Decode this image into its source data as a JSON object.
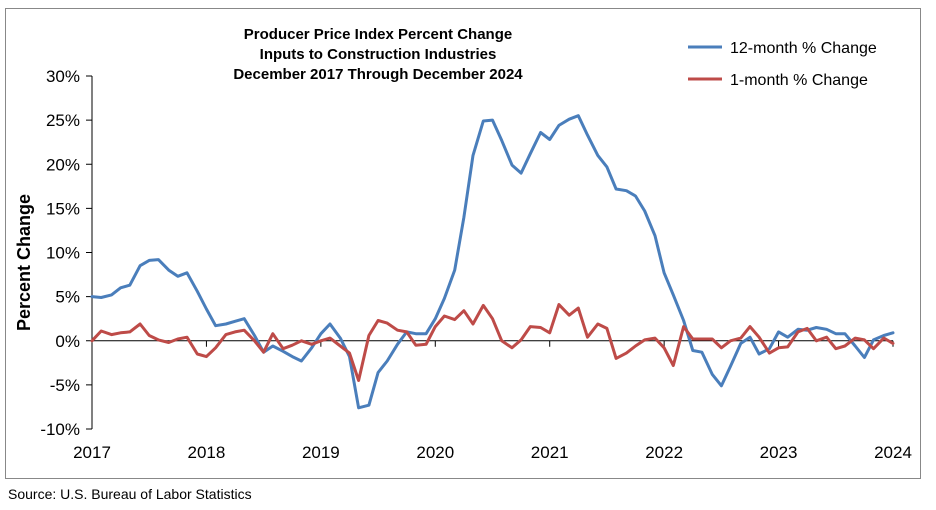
{
  "colors": {
    "blue": "#4A7EBB",
    "red": "#BE4B48",
    "axis": "#000000",
    "frame": "#888888"
  },
  "source": "Source: U.S. Bureau of Labor Statistics",
  "chart_data": {
    "type": "line",
    "title_lines": [
      "Producer Price Index Percent Change",
      "Inputs to Construction Industries",
      "December 2017 Through December 2024"
    ],
    "xlabel": "",
    "ylabel": "Percent Change",
    "ylim": [
      -10,
      30
    ],
    "yticks": [
      -10,
      -5,
      0,
      5,
      10,
      15,
      20,
      25,
      30
    ],
    "ytick_labels": [
      "-10%",
      "-5%",
      "0%",
      "5%",
      "10%",
      "15%",
      "20%",
      "25%",
      "30%"
    ],
    "xlim": [
      2017,
      2024
    ],
    "xticks": [
      2017,
      2018,
      2019,
      2020,
      2021,
      2022,
      2023,
      2024
    ],
    "xtick_labels": [
      "2017",
      "2018",
      "2019",
      "2020",
      "2021",
      "2022",
      "2023",
      "2024"
    ],
    "grid": false,
    "legend": "top-right",
    "series": [
      {
        "name": "12-month % Change",
        "color": "#4A7EBB",
        "x": [
          2017.0,
          2017.08,
          2017.17,
          2017.25,
          2017.33,
          2017.42,
          2017.5,
          2017.58,
          2017.67,
          2017.75,
          2017.83,
          2017.92,
          2018.0,
          2018.08,
          2018.17,
          2018.25,
          2018.33,
          2018.42,
          2018.5,
          2018.58,
          2018.67,
          2018.75,
          2018.83,
          2018.92,
          2019.0,
          2019.08,
          2019.17,
          2019.25,
          2019.33,
          2019.42,
          2019.5,
          2019.58,
          2019.67,
          2019.75,
          2019.83,
          2019.92,
          2020.0,
          2020.08,
          2020.17,
          2020.25,
          2020.33,
          2020.42,
          2020.5,
          2020.58,
          2020.67,
          2020.75,
          2020.83,
          2020.92,
          2021.0,
          2021.08,
          2021.17,
          2021.25,
          2021.33,
          2021.42,
          2021.5,
          2021.58,
          2021.67,
          2021.75,
          2021.83,
          2021.92,
          2022.0,
          2022.08,
          2022.17,
          2022.25,
          2022.33,
          2022.42,
          2022.5,
          2022.58,
          2022.67,
          2022.75,
          2022.83,
          2022.92,
          2023.0,
          2023.08,
          2023.17,
          2023.25,
          2023.33,
          2023.42,
          2023.5,
          2023.58,
          2023.67,
          2023.75,
          2023.83,
          2023.92,
          2024.0
        ],
        "values": [
          5.0,
          4.9,
          5.2,
          6.0,
          6.3,
          8.5,
          9.1,
          9.2,
          8.0,
          7.3,
          7.7,
          5.6,
          3.6,
          1.7,
          1.9,
          2.2,
          2.5,
          0.6,
          -1.3,
          -0.6,
          -1.2,
          -1.8,
          -2.3,
          -0.8,
          0.8,
          1.9,
          0.3,
          -1.8,
          -7.6,
          -7.3,
          -3.6,
          -2.3,
          -0.4,
          1.0,
          0.8,
          0.8,
          2.5,
          4.8,
          8.0,
          14.0,
          21.0,
          24.9,
          25.0,
          22.7,
          19.9,
          19.0,
          21.2,
          23.6,
          22.8,
          24.4,
          25.1,
          25.5,
          23.3,
          21.0,
          19.7,
          17.2,
          17.0,
          16.4,
          14.7,
          11.9,
          7.7,
          5.2,
          2.3,
          -1.1,
          -1.3,
          -3.8,
          -5.1,
          -2.9,
          -0.3,
          0.4,
          -1.5,
          -0.9,
          1.0,
          0.4,
          1.3,
          1.2,
          1.5,
          1.3,
          0.8,
          0.8,
          -0.6,
          -1.9,
          0.1,
          0.6,
          0.9
        ]
      },
      {
        "name": "1-month % Change",
        "color": "#BE4B48",
        "x": [
          2017.0,
          2017.08,
          2017.17,
          2017.25,
          2017.33,
          2017.42,
          2017.5,
          2017.58,
          2017.67,
          2017.75,
          2017.83,
          2017.92,
          2018.0,
          2018.08,
          2018.17,
          2018.25,
          2018.33,
          2018.42,
          2018.5,
          2018.58,
          2018.67,
          2018.75,
          2018.83,
          2018.92,
          2019.0,
          2019.08,
          2019.17,
          2019.25,
          2019.33,
          2019.42,
          2019.5,
          2019.58,
          2019.67,
          2019.75,
          2019.83,
          2019.92,
          2020.0,
          2020.08,
          2020.17,
          2020.25,
          2020.33,
          2020.42,
          2020.5,
          2020.58,
          2020.67,
          2020.75,
          2020.83,
          2020.92,
          2021.0,
          2021.08,
          2021.17,
          2021.25,
          2021.33,
          2021.42,
          2021.5,
          2021.58,
          2021.67,
          2021.75,
          2021.83,
          2021.92,
          2022.0,
          2022.08,
          2022.17,
          2022.25,
          2022.33,
          2022.42,
          2022.5,
          2022.58,
          2022.67,
          2022.75,
          2022.83,
          2022.92,
          2023.0,
          2023.08,
          2023.17,
          2023.25,
          2023.33,
          2023.42,
          2023.5,
          2023.58,
          2023.67,
          2023.75,
          2023.83,
          2023.92,
          2024.0
        ],
        "values": [
          0.0,
          1.1,
          0.7,
          0.9,
          1.0,
          1.9,
          0.6,
          0.1,
          -0.2,
          0.2,
          0.4,
          -1.5,
          -1.8,
          -0.8,
          0.7,
          1.0,
          1.2,
          0.0,
          -1.3,
          0.8,
          -0.9,
          -0.5,
          0.0,
          -0.4,
          0.0,
          0.3,
          -0.6,
          -1.4,
          -4.5,
          0.6,
          2.3,
          2.0,
          1.2,
          1.0,
          -0.5,
          -0.4,
          1.6,
          2.8,
          2.4,
          3.4,
          1.9,
          4.0,
          2.5,
          0.0,
          -0.8,
          0.1,
          1.6,
          1.5,
          0.9,
          4.1,
          2.9,
          3.7,
          0.4,
          1.9,
          1.4,
          -2.0,
          -1.4,
          -0.6,
          0.1,
          0.3,
          -0.8,
          -2.8,
          1.6,
          0.2,
          0.2,
          0.2,
          -0.8,
          0.0,
          0.3,
          1.6,
          0.4,
          -1.4,
          -0.8,
          -0.7,
          1.0,
          1.4,
          0.0,
          0.4,
          -0.9,
          -0.6,
          0.3,
          0.1,
          -0.9,
          0.3,
          -0.3
        ]
      }
    ]
  }
}
